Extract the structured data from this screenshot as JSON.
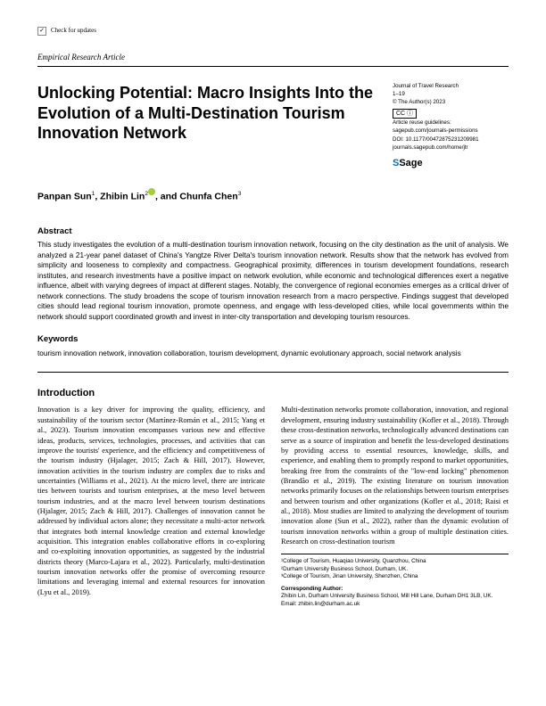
{
  "topbar": {
    "check_label": "Check for updates"
  },
  "article_type": "Empirical Research Article",
  "title": "Unlocking Potential: Macro Insights Into the Evolution of a Multi-Destination Tourism Innovation Network",
  "meta": {
    "journal": "Journal of Travel Research",
    "pages": "1–19",
    "copyright": "© The Author(s) 2023",
    "cc": "CC ⓘ",
    "reuse_label": "Article reuse guidelines:",
    "reuse_url": "sagepub.com/journals-permissions",
    "doi": "DOI: 10.1177/00472875231209981",
    "journal_url": "journals.sagepub.com/home/jtr",
    "publisher": "Sage"
  },
  "authors_html": "Panpan Sun¹, Zhibin Lin²⬤, and Chunfa Chen³",
  "authors": {
    "a1": "Panpan Sun",
    "a2": "Zhibin Lin",
    "a3": "Chunfa Chen",
    "sep": ", and "
  },
  "abstract": {
    "head": "Abstract",
    "text": "This study investigates the evolution of a multi-destination tourism innovation network, focusing on the city destination as the unit of analysis. We analyzed a 21-year panel dataset of China's Yangtze River Delta's tourism innovation network. Results show that the network has evolved from simplicity and looseness to complexity and compactness. Geographical proximity, differences in tourism development foundations, research institutes, and research investments have a positive impact on network evolution, while economic and technological differences exert a negative influence, albeit with varying degrees of impact at different stages. Notably, the convergence of regional economies emerges as a critical driver of network connections. The study broadens the scope of tourism innovation research from a macro perspective. Findings suggest that developed cities should lead regional tourism innovation, promote openness, and engage with less-developed cities, while local governments within the network should support coordinated growth and invest in inter-city transportation and developing tourism resources."
  },
  "keywords": {
    "head": "Keywords",
    "text": "tourism innovation network, innovation collaboration, tourism development, dynamic evolutionary approach, social network analysis"
  },
  "intro": {
    "head": "Introduction",
    "col1": "Innovation is a key driver for improving the quality, efficiency, and sustainability of the tourism sector (Martínez-Román et al., 2015; Yang et al., 2023). Tourism innovation encompasses various new and effective ideas, products, services, technologies, processes, and activities that can improve the tourists' experience, and the efficiency and competitiveness of the tourism industry (Hjalager, 2015; Zach & Hill, 2017). However, innovation activities in the tourism industry are complex due to risks and uncertainties (Williams et al., 2021). At the micro level, there are intricate ties between tourists and tourism enterprises, at the meso level between tourism industries, and at the macro level between tourism destinations (Hjalager, 2015; Zach & Hill, 2017). Challenges of innovation cannot be addressed by individual actors alone; they necessitate a multi-actor network that integrates both internal knowledge creation and external knowledge acquisition. This integration enables collaborative efforts in co-exploring and co-exploiting innovation opportunities, as suggested by the industrial districts theory (Marco-Lajara et al., 2022). Particularly, multi-destination tourism innovation networks offer the promise of overcoming resource limitations and leveraging internal and external resources for innovation (Lyu et al., 2019).",
    "col2": "Multi-destination networks promote collaboration, innovation, and regional development, ensuring industry sustainability (Kofler et al., 2018). Through these cross-destination networks, technologically advanced destinations can serve as a source of inspiration and benefit the less-developed destinations by providing access to essential resources, knowledge, skills, and experience, and enabling them to promptly respond to market opportunities, breaking free from the constraints of the \"low-end locking\" phenomenon (Brandão et al., 2019). The existing literature on tourism innovation networks primarily focuses on the relationships between tourism enterprises and between tourism and other organizations (Kofler et al., 2018; Raisi et al., 2018). Most studies are limited to analyzing the development of tourism innovation alone (Sun et al., 2022), rather than the dynamic evolution of tourism innovation networks within a group of multiple destination cities. Research on cross-destination tourism"
  },
  "affiliations": {
    "a1": "¹College of Tourism, Huaqiao University, Quanzhou, China",
    "a2": "²Durham University Business School, Durham, UK.",
    "a3": "³College of Tourism, Jinan University, Shenzhen, China",
    "corr_head": "Corresponding Author:",
    "corr_text": "Zhibin Lin, Durham University Business School, Mill Hill Lane, Durham DH1 3LB, UK.",
    "email": "Email: zhibin.lin@durham.ac.uk"
  }
}
